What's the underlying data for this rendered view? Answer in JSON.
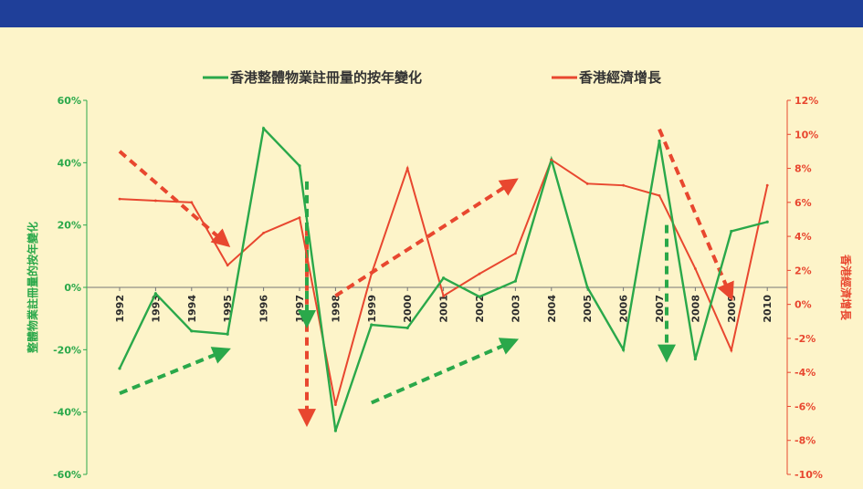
{
  "colors": {
    "band": "#1f3f99",
    "background": "#fdf4c9",
    "green": "#2aa84a",
    "red": "#e8472f"
  },
  "chart_data": {
    "type": "line",
    "categories": [
      "1992",
      "1993",
      "1994",
      "1995",
      "1996",
      "1997",
      "1998",
      "1999",
      "2000",
      "2001",
      "2002",
      "2003",
      "2004",
      "2005",
      "2006",
      "2007",
      "2008",
      "2009",
      "2010"
    ],
    "series": [
      {
        "name": "香港整體物業註冊量的按年變化",
        "axis": "left",
        "values": [
          -26,
          -2,
          -14,
          -15,
          51,
          39,
          -46,
          -12,
          -13,
          3,
          -3,
          2,
          41,
          0,
          -20,
          47,
          -23,
          18,
          21
        ]
      },
      {
        "name": "香港經濟增長",
        "axis": "right",
        "values": [
          6.2,
          6.1,
          6.0,
          2.3,
          4.2,
          5.1,
          -5.9,
          1.8,
          8.0,
          0.5,
          1.8,
          3.0,
          8.5,
          7.1,
          7.0,
          6.4,
          2.1,
          -2.7,
          7.0
        ]
      }
    ],
    "y_left": {
      "label": "整體物業註冊量的按年變化",
      "ylim": [
        -60,
        60
      ],
      "ticks": [
        "60%",
        "40%",
        "20%",
        "0%",
        "-20%",
        "-40%",
        "-60%"
      ]
    },
    "y_right": {
      "label": "香港經濟增長",
      "ylim": [
        -10,
        12
      ],
      "ticks": [
        "12%",
        "10%",
        "8%",
        "6%",
        "4%",
        "2%",
        "0%",
        "-2%",
        "-4%",
        "-6%",
        "-8%",
        "-10%"
      ]
    },
    "legend": "top",
    "grid": false,
    "annotations": [
      {
        "type": "dashed-arrow",
        "color": "red",
        "from": [
          "1992",
          9.0
        ],
        "to": [
          "1995",
          3.5
        ],
        "axis": "right"
      },
      {
        "type": "dashed-arrow",
        "color": "red",
        "from": [
          "1997",
          4.5
        ],
        "to": [
          "1997",
          -7.0
        ],
        "axis": "right"
      },
      {
        "type": "dashed-arrow",
        "color": "red",
        "from": [
          "1998",
          0.5
        ],
        "to": [
          "2003",
          7.3
        ],
        "axis": "right"
      },
      {
        "type": "dashed-arrow",
        "color": "red",
        "from": [
          "2007",
          10.3
        ],
        "to": [
          "2009",
          0.4
        ],
        "axis": "right"
      },
      {
        "type": "dashed-arrow",
        "color": "green",
        "from": [
          "1992",
          -34
        ],
        "to": [
          "1995",
          -20
        ],
        "axis": "left"
      },
      {
        "type": "dashed-arrow",
        "color": "green",
        "from": [
          "1997",
          34
        ],
        "to": [
          "1997",
          -12
        ],
        "axis": "left"
      },
      {
        "type": "dashed-arrow",
        "color": "green",
        "from": [
          "1999",
          -37
        ],
        "to": [
          "2003",
          -17
        ],
        "axis": "left"
      },
      {
        "type": "dashed-arrow",
        "color": "green",
        "from": [
          "2007",
          20
        ],
        "to": [
          "2007",
          -23
        ],
        "axis": "left"
      }
    ]
  }
}
